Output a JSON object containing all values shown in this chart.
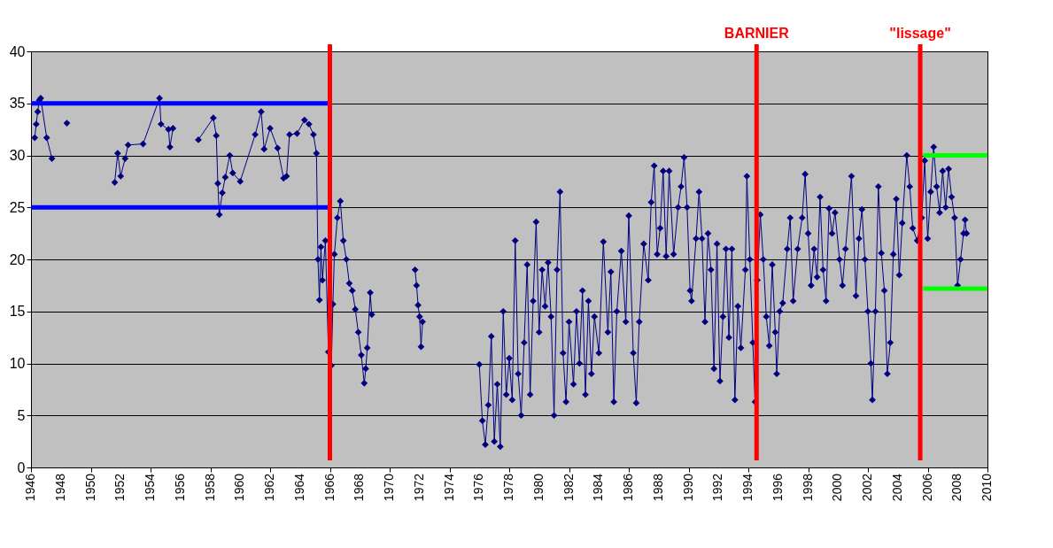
{
  "chart_data": {
    "type": "line",
    "marker": "diamond",
    "grid": "y",
    "xlim": [
      1946,
      2010
    ],
    "xticks": [
      1946,
      1948,
      1950,
      1952,
      1954,
      1956,
      1958,
      1960,
      1962,
      1964,
      1966,
      1968,
      1970,
      1972,
      1974,
      1976,
      1978,
      1980,
      1982,
      1984,
      1986,
      1988,
      1990,
      1992,
      1994,
      1996,
      1998,
      2000,
      2002,
      2004,
      2006,
      2008,
      2010
    ],
    "ylim": [
      0,
      40
    ],
    "yticks": [
      0,
      5,
      10,
      15,
      20,
      25,
      30,
      35,
      40
    ],
    "series": [
      {
        "color": "#000080",
        "x": [
          1946.25,
          1946.35,
          1946.45,
          1946.55,
          1946.65,
          1947.05,
          1947.4,
          1948.0,
          1948.4,
          1950.0,
          1951.6,
          1951.8,
          1952.0,
          1952.3,
          1952.5,
          1953.5,
          1954.6,
          1954.7,
          1955.2,
          1955.3,
          1955.5,
          1956.5,
          1957.2,
          1958.2,
          1958.4,
          1958.5,
          1958.6,
          1958.8,
          1959.0,
          1959.3,
          1959.5,
          1960.0,
          1961.0,
          1961.4,
          1961.6,
          1962.0,
          1962.5,
          1962.9,
          1963.1,
          1963.3,
          1963.8,
          1964.3,
          1964.6,
          1964.9,
          1965.1,
          1965.2,
          1965.3,
          1965.4,
          1965.5,
          1965.7,
          1965.9,
          1966.1,
          1966.2,
          1966.3,
          1966.5,
          1966.7,
          1966.9,
          1967.1,
          1967.3,
          1967.5,
          1967.7,
          1967.9,
          1968.1,
          1968.3,
          1968.4,
          1968.5,
          1968.7,
          1968.8,
          1970.0,
          1971.7,
          1971.8,
          1971.9,
          1972.0,
          1972.1,
          1972.2,
          1974.0,
          1976.0,
          1976.2,
          1976.4,
          1976.6,
          1976.8,
          1977.0,
          1977.2,
          1977.4,
          1977.6,
          1977.8,
          1978.0,
          1978.2,
          1978.4,
          1978.6,
          1978.8,
          1979.0,
          1979.2,
          1979.4,
          1979.6,
          1979.8,
          1980.0,
          1980.2,
          1980.4,
          1980.6,
          1980.8,
          1981.0,
          1981.2,
          1981.4,
          1981.6,
          1981.8,
          1982.0,
          1982.3,
          1982.5,
          1982.7,
          1982.9,
          1983.1,
          1983.3,
          1983.5,
          1983.7,
          1984.0,
          1984.3,
          1984.6,
          1984.8,
          1985.0,
          1985.2,
          1985.5,
          1985.8,
          1986.0,
          1986.3,
          1986.5,
          1986.7,
          1987.0,
          1987.3,
          1987.5,
          1987.7,
          1987.9,
          1988.1,
          1988.3,
          1988.5,
          1988.7,
          1989.0,
          1989.3,
          1989.5,
          1989.7,
          1989.9,
          1990.1,
          1990.2,
          1990.5,
          1990.7,
          1990.9,
          1991.1,
          1991.3,
          1991.5,
          1991.7,
          1991.9,
          1992.1,
          1992.3,
          1992.5,
          1992.7,
          1992.9,
          1993.1,
          1993.3,
          1993.5,
          1993.8,
          1993.9,
          1994.1,
          1994.3,
          1994.45,
          1994.6,
          1994.8,
          1995.0,
          1995.2,
          1995.4,
          1995.6,
          1995.8,
          1995.9,
          1996.1,
          1996.3,
          1996.6,
          1996.8,
          1997.0,
          1997.3,
          1997.6,
          1997.8,
          1998.0,
          1998.2,
          1998.4,
          1998.6,
          1998.8,
          1999.0,
          1999.2,
          1999.4,
          1999.6,
          1999.8,
          2000.1,
          2000.3,
          2000.5,
          2000.9,
          2001.2,
          2001.4,
          2001.6,
          2001.8,
          2002.0,
          2002.2,
          2002.3,
          2002.5,
          2002.7,
          2002.9,
          2003.1,
          2003.3,
          2003.5,
          2003.7,
          2003.9,
          2004.1,
          2004.3,
          2004.6,
          2004.8,
          2005.0,
          2005.3,
          2005.6,
          2005.8,
          2006.0,
          2006.2,
          2006.4,
          2006.6,
          2006.8,
          2007.0,
          2007.2,
          2007.4,
          2007.6,
          2007.8,
          2008.0,
          2008.2,
          2008.4,
          2008.5,
          2008.6
        ],
        "values": [
          31.7,
          33,
          34.2,
          35.3,
          35.5,
          31.7,
          29.7,
          null,
          33.1,
          null,
          27.4,
          30.2,
          28,
          29.7,
          31,
          31.1,
          35.5,
          33,
          32.5,
          30.8,
          32.6,
          null,
          31.5,
          33.6,
          31.9,
          27.3,
          24.3,
          26.4,
          27.9,
          30,
          28.3,
          27.5,
          32,
          34.2,
          30.6,
          32.6,
          30.7,
          27.8,
          28,
          32,
          32.1,
          33.4,
          33,
          32,
          30.2,
          20,
          16.1,
          21.2,
          18,
          21.8,
          11.1,
          9.8,
          15.7,
          20.5,
          24,
          25.6,
          21.8,
          20,
          17.7,
          17,
          15.2,
          13,
          10.8,
          8.1,
          9.5,
          11.5,
          16.8,
          14.7,
          null,
          19,
          17.5,
          15.6,
          14.5,
          11.6,
          14,
          null,
          9.9,
          4.5,
          2.2,
          6,
          12.6,
          2.5,
          8,
          2,
          15,
          7,
          10.5,
          6.5,
          21.8,
          9,
          5,
          12,
          19.5,
          7,
          16,
          23.6,
          13,
          19,
          15.5,
          19.7,
          14.5,
          5,
          19,
          26.5,
          11,
          6.3,
          14,
          8,
          15,
          10,
          17,
          7,
          16,
          9,
          14.5,
          11,
          21.7,
          13,
          18.8,
          6.3,
          15,
          20.8,
          14,
          24.2,
          11,
          6.2,
          14,
          21.5,
          18,
          25.5,
          29,
          20.5,
          23,
          28.5,
          20.3,
          28.5,
          20.5,
          25,
          27,
          29.8,
          25,
          17,
          16,
          22,
          26.5,
          22,
          14,
          22.5,
          19,
          9.5,
          21.5,
          8.3,
          14.5,
          21,
          12.5,
          21,
          6.5,
          15.5,
          11.5,
          19,
          28,
          20,
          12,
          6.3,
          18,
          24.3,
          20,
          14.5,
          11.7,
          19.5,
          13,
          9,
          15,
          15.8,
          21,
          24,
          16,
          21,
          24,
          28.2,
          22.5,
          17.5,
          21,
          18.3,
          26,
          19,
          16,
          24.9,
          22.5,
          24.5,
          20,
          17.5,
          21,
          28,
          16.5,
          22,
          24.8,
          20,
          15,
          10,
          6.5,
          15,
          27,
          20.6,
          17,
          9,
          12,
          20.5,
          25.8,
          18.5,
          23.5,
          30,
          27,
          23,
          21.8,
          24,
          29.5,
          22,
          26.5,
          30.8,
          27,
          24.5,
          28.5,
          25,
          28.7,
          26,
          24,
          17.5,
          20,
          22.5,
          23.8,
          22.5
        ]
      },
      {
        "color": "#0000ff",
        "marker": "none",
        "x": [
          1946,
          1966
        ],
        "values": [
          35,
          35
        ]
      },
      {
        "color": "#0000ff",
        "marker": "none",
        "x": [
          1946,
          1966
        ],
        "values": [
          25,
          25
        ]
      },
      {
        "color": "#00ff00",
        "marker": "none",
        "x": [
          2005.7,
          2010
        ],
        "values": [
          30,
          30
        ]
      },
      {
        "color": "#00ff00",
        "marker": "none",
        "x": [
          2005.7,
          2010
        ],
        "values": [
          17.2,
          17.2
        ]
      }
    ],
    "ref_lines": [
      {
        "axis": "x",
        "value": 1966,
        "color": "#ff0000",
        "line_style": "solid"
      },
      {
        "axis": "x",
        "value": 1994.55,
        "label": "BARNIER",
        "color": "#ff0000",
        "line_style": "solid"
      },
      {
        "axis": "x",
        "value": 2005.5,
        "label": "\"lissage\"",
        "color": "#ff0000",
        "line_style": "solid"
      }
    ]
  }
}
